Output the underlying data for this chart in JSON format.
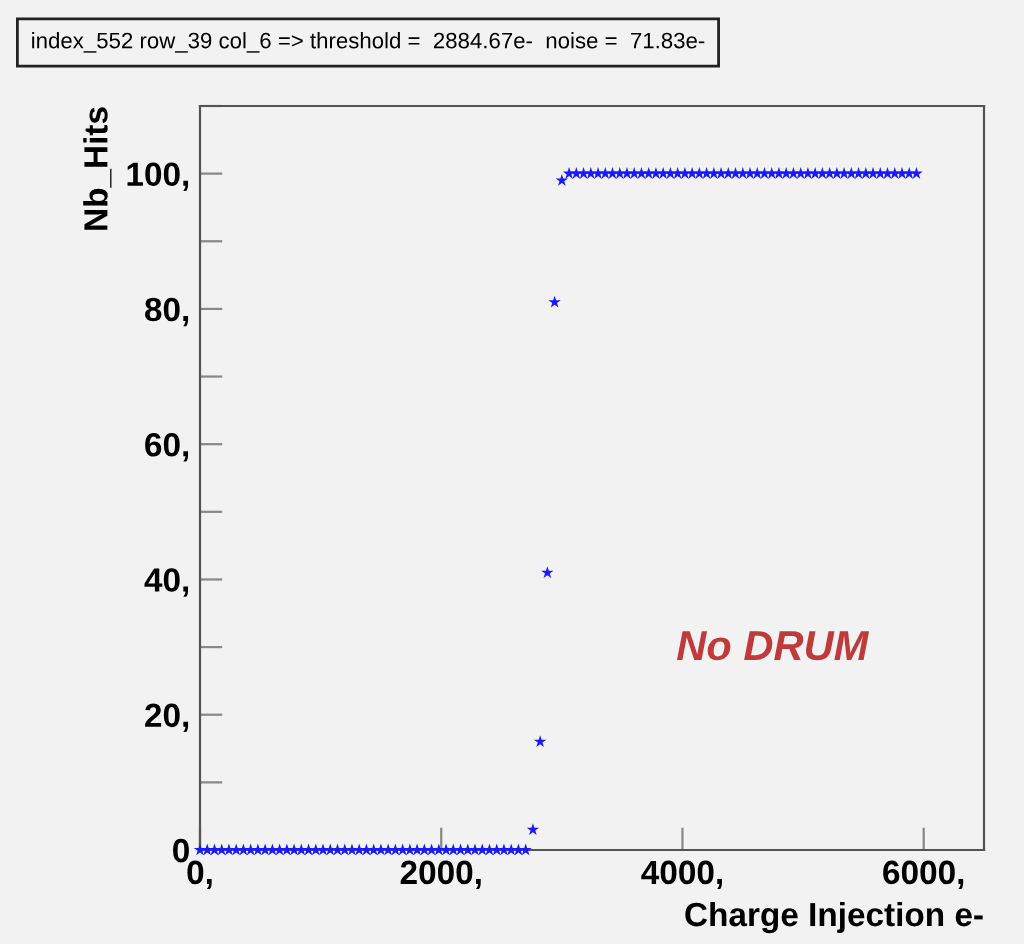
{
  "chart_data": {
    "type": "scatter",
    "title": "index_552 row_39 col_6 => threshold =  2884.67e-  noise =  71.83e-",
    "xlabel": "Charge Injection e-",
    "ylabel": "Nb_Hits",
    "x": [
      0,
      60,
      120,
      180,
      240,
      300,
      360,
      420,
      480,
      540,
      600,
      660,
      720,
      780,
      840,
      900,
      960,
      1020,
      1080,
      1140,
      1200,
      1260,
      1320,
      1380,
      1440,
      1500,
      1560,
      1620,
      1680,
      1740,
      1800,
      1860,
      1920,
      1980,
      2040,
      2100,
      2160,
      2220,
      2280,
      2340,
      2400,
      2460,
      2520,
      2580,
      2640,
      2700,
      2760,
      2820,
      2880,
      2940,
      3000,
      3060,
      3120,
      3180,
      3240,
      3300,
      3360,
      3420,
      3480,
      3540,
      3600,
      3660,
      3720,
      3780,
      3840,
      3900,
      3960,
      4020,
      4080,
      4140,
      4200,
      4260,
      4320,
      4380,
      4440,
      4500,
      4560,
      4620,
      4680,
      4740,
      4800,
      4860,
      4920,
      4980,
      5040,
      5100,
      5160,
      5220,
      5280,
      5340,
      5400,
      5460,
      5520,
      5580,
      5640,
      5700,
      5760,
      5820,
      5880,
      5940
    ],
    "series": [
      {
        "color": "#1a1aff",
        "values": [
          0,
          0,
          0,
          0,
          0,
          0,
          0,
          0,
          0,
          0,
          0,
          0,
          0,
          0,
          0,
          0,
          0,
          0,
          0,
          0,
          0,
          0,
          0,
          0,
          0,
          0,
          0,
          0,
          0,
          0,
          0,
          0,
          0,
          0,
          0,
          0,
          0,
          0,
          0,
          0,
          0,
          0,
          0,
          0,
          0,
          0,
          3,
          16,
          41,
          81,
          99,
          100,
          100,
          100,
          100,
          100,
          100,
          100,
          100,
          100,
          100,
          100,
          100,
          100,
          100,
          100,
          100,
          100,
          100,
          100,
          100,
          100,
          100,
          100,
          100,
          100,
          100,
          100,
          100,
          100,
          100,
          100,
          100,
          100,
          100,
          100,
          100,
          100,
          100,
          100,
          100,
          100,
          100,
          100,
          100,
          100,
          100,
          100,
          100,
          100
        ]
      }
    ],
    "marker": "star",
    "xlim": [
      0,
      6500
    ],
    "ylim": [
      0,
      110
    ],
    "xticks": [
      {
        "value": 0,
        "label": "0,"
      },
      {
        "value": 2000,
        "label": "2000,"
      },
      {
        "value": 4000,
        "label": "4000,"
      },
      {
        "value": 6000,
        "label": "6000,"
      }
    ],
    "yticks": [
      0,
      {
        "value": 10,
        "label": null
      },
      {
        "value": 20,
        "label": "20,"
      },
      {
        "value": 30,
        "label": null
      },
      {
        "value": 40,
        "label": "40,"
      },
      {
        "value": 50,
        "label": null
      },
      {
        "value": 60,
        "label": "60,"
      },
      {
        "value": 70,
        "label": null
      },
      {
        "value": 80,
        "label": "80,"
      },
      {
        "value": 90,
        "label": null
      },
      {
        "value": 100,
        "label": "100,"
      },
      {
        "value": 110,
        "label": null
      }
    ],
    "annotations": [
      "No DRUM"
    ]
  }
}
